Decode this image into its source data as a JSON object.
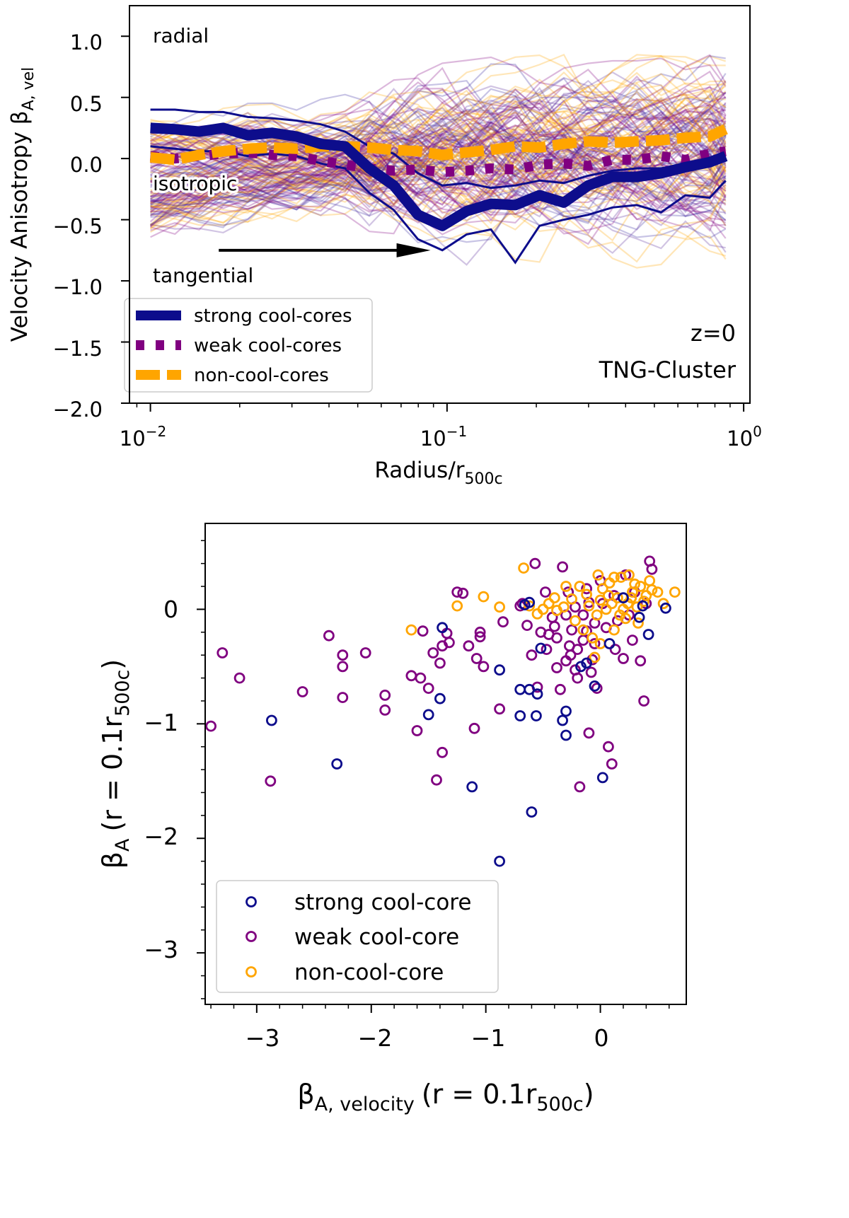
{
  "chart_data": [
    {
      "type": "line",
      "title": "",
      "xlabel": "Radius/r",
      "xlabel_sub": "500c",
      "ylabel": "Velocity Anisotropy β",
      "ylabel_sub": "A, vel",
      "xscale": "log",
      "xlim": [
        0.0085,
        1.05
      ],
      "ylim": [
        -2.0,
        1.25
      ],
      "ytick_labels": [
        "1.0",
        "0.5",
        "0.0",
        "−0.5",
        "−1.0",
        "−1.5",
        "−2.0"
      ],
      "xtick_bases": [
        "10",
        "10",
        "10"
      ],
      "xtick_exponents": [
        "−2",
        "−1",
        "0"
      ],
      "annotations": {
        "radial": "radial",
        "isotropic": "isotropic",
        "tangential": "tangential",
        "redshift": "z=0",
        "simulation": "TNG-Cluster"
      },
      "arrow": {
        "from": [
          0.017,
          -0.75
        ],
        "to": [
          0.088,
          -0.75
        ]
      },
      "legend_position": "lower-left",
      "x": [
        0.01,
        0.0121,
        0.0146,
        0.0176,
        0.0213,
        0.0257,
        0.0311,
        0.0375,
        0.0453,
        0.0547,
        0.0661,
        0.0798,
        0.0964,
        0.1164,
        0.1406,
        0.1698,
        0.2051,
        0.2477,
        0.2991,
        0.3612,
        0.4363,
        0.5269,
        0.6363,
        0.7685,
        0.8696
      ],
      "series": [
        {
          "name": "strong cool-cores",
          "color": "#0d0d8c",
          "style": "solid",
          "values": [
            0.25,
            0.24,
            0.22,
            0.25,
            0.19,
            0.21,
            0.18,
            0.12,
            0.1,
            -0.08,
            -0.22,
            -0.46,
            -0.55,
            -0.43,
            -0.37,
            -0.38,
            -0.3,
            -0.36,
            -0.22,
            -0.15,
            -0.15,
            -0.12,
            -0.07,
            -0.03,
            0.02
          ],
          "upper": [
            0.4,
            0.4,
            0.38,
            0.38,
            0.34,
            0.33,
            0.31,
            0.28,
            0.22,
            0.1,
            0.04,
            -0.12,
            -0.22,
            -0.2,
            -0.24,
            -0.22,
            -0.18,
            -0.2,
            -0.14,
            -0.1,
            -0.08,
            -0.08,
            -0.04,
            -0.02,
            0.0
          ],
          "lower": [
            0.1,
            0.08,
            0.06,
            0.06,
            0.02,
            0.04,
            0.02,
            -0.04,
            -0.08,
            -0.28,
            -0.42,
            -0.66,
            -0.75,
            -0.62,
            -0.58,
            -0.85,
            -0.55,
            -0.5,
            -0.46,
            -0.4,
            -0.38,
            -0.44,
            -0.3,
            -0.32,
            -0.18
          ]
        },
        {
          "name": "weak cool-cores",
          "color": "#800080",
          "style": "dotted",
          "values": [
            0.02,
            0.0,
            0.02,
            0.04,
            0.05,
            0.03,
            0.02,
            -0.02,
            -0.05,
            -0.08,
            -0.1,
            -0.09,
            -0.11,
            -0.1,
            -0.08,
            -0.09,
            -0.05,
            -0.04,
            -0.06,
            -0.01,
            -0.01,
            0.02,
            -0.01,
            0.04,
            0.06
          ]
        },
        {
          "name": "non-cool-cores",
          "color": "#ffa500",
          "style": "dashed",
          "values": [
            0.01,
            -0.01,
            0.03,
            0.06,
            0.08,
            0.09,
            0.08,
            0.1,
            0.1,
            0.09,
            0.07,
            0.06,
            0.03,
            0.05,
            0.07,
            0.1,
            0.09,
            0.12,
            0.14,
            0.13,
            0.14,
            0.15,
            0.17,
            0.18,
            0.24
          ]
        }
      ]
    },
    {
      "type": "scatter",
      "title": "",
      "xlabel": "β",
      "xlabel_sub": "A, velocity",
      "xlabel_rest": "(r = 0.1r",
      "xlabel_rest_sub": "500c",
      "xlabel_close": ")",
      "ylabel": "β",
      "ylabel_sub": "A",
      "ylabel_rest": "(r = 0.1r",
      "ylabel_rest_sub": "500c",
      "ylabel_close": ")",
      "xlim": [
        -3.45,
        0.75
      ],
      "ylim": [
        -3.45,
        0.75
      ],
      "xtick_labels": [
        "−3",
        "−2",
        "−1",
        "0"
      ],
      "ytick_labels": [
        "0",
        "−1",
        "−2",
        "−3"
      ],
      "legend_position": "lower-left",
      "series": [
        {
          "name": "strong cool-core",
          "color": "#0d0d8c",
          "points": [
            [
              -2.87,
              -0.97
            ],
            [
              -2.3,
              -1.35
            ],
            [
              -1.5,
              -0.92
            ],
            [
              -1.4,
              -0.78
            ],
            [
              -1.38,
              -0.16
            ],
            [
              -1.12,
              -1.55
            ],
            [
              -0.88,
              -0.53
            ],
            [
              -0.88,
              -2.2
            ],
            [
              -0.7,
              -0.7
            ],
            [
              -0.7,
              -0.93
            ],
            [
              -0.66,
              0.04
            ],
            [
              -0.62,
              -0.7
            ],
            [
              -0.6,
              -1.77
            ],
            [
              -0.56,
              -0.93
            ],
            [
              -0.55,
              -0.74
            ],
            [
              -0.33,
              -0.97
            ],
            [
              -0.3,
              -0.89
            ],
            [
              -0.3,
              -1.1
            ],
            [
              -0.12,
              -0.47
            ],
            [
              -0.05,
              -0.67
            ],
            [
              0.02,
              -1.47
            ],
            [
              0.2,
              0.1
            ],
            [
              0.34,
              -0.07
            ],
            [
              0.37,
              0.03
            ],
            [
              0.42,
              -0.22
            ],
            [
              0.57,
              0.01
            ],
            [
              -0.62,
              0.06
            ],
            [
              -0.52,
              -0.34
            ],
            [
              -0.17,
              -0.5
            ],
            [
              0.08,
              -0.3
            ]
          ]
        },
        {
          "name": "weak cool-core",
          "color": "#800080",
          "points": [
            [
              -3.4,
              -1.02
            ],
            [
              -3.3,
              -0.38
            ],
            [
              -3.15,
              -0.6
            ],
            [
              -2.88,
              -1.5
            ],
            [
              -2.6,
              -0.72
            ],
            [
              -2.37,
              -0.23
            ],
            [
              -2.25,
              -0.4
            ],
            [
              -2.25,
              -0.5
            ],
            [
              -2.25,
              -0.77
            ],
            [
              -2.05,
              -0.38
            ],
            [
              -1.88,
              -0.75
            ],
            [
              -1.88,
              -0.88
            ],
            [
              -1.65,
              -0.58
            ],
            [
              -1.6,
              -1.06
            ],
            [
              -1.57,
              -0.6
            ],
            [
              -1.55,
              -0.19
            ],
            [
              -1.5,
              -0.69
            ],
            [
              -1.46,
              -0.38
            ],
            [
              -1.43,
              -1.49
            ],
            [
              -1.4,
              -0.47
            ],
            [
              -1.38,
              -0.32
            ],
            [
              -1.38,
              -1.25
            ],
            [
              -1.34,
              -0.21
            ],
            [
              -1.32,
              -0.29
            ],
            [
              -1.25,
              0.15
            ],
            [
              -1.2,
              0.14
            ],
            [
              -1.15,
              -0.32
            ],
            [
              -1.1,
              -1.04
            ],
            [
              -1.08,
              -0.43
            ],
            [
              -1.05,
              -0.24
            ],
            [
              -1.05,
              -0.2
            ],
            [
              -1.02,
              -0.5
            ],
            [
              -0.88,
              -0.87
            ],
            [
              -0.85,
              -0.11
            ],
            [
              -0.7,
              0.03
            ],
            [
              -0.64,
              -0.14
            ],
            [
              -0.6,
              -0.4
            ],
            [
              -0.55,
              -0.68
            ],
            [
              -0.52,
              -0.2
            ],
            [
              -0.48,
              0.15
            ],
            [
              -0.45,
              -0.22
            ],
            [
              -0.4,
              -0.15
            ],
            [
              -0.38,
              -0.51
            ],
            [
              -0.35,
              -0.7
            ],
            [
              -0.3,
              -0.45
            ],
            [
              -0.27,
              -0.32
            ],
            [
              -0.25,
              -0.18
            ],
            [
              -0.22,
              -0.53
            ],
            [
              -0.2,
              -0.6
            ],
            [
              -0.18,
              -1.55
            ],
            [
              -0.15,
              -0.27
            ],
            [
              -0.12,
              -0.19
            ],
            [
              -0.1,
              -1.08
            ],
            [
              -0.07,
              -0.44
            ],
            [
              -0.05,
              -0.3
            ],
            [
              -0.03,
              -0.69
            ],
            [
              0.05,
              -0.16
            ],
            [
              0.07,
              -1.2
            ],
            [
              0.1,
              -1.35
            ],
            [
              0.13,
              -0.35
            ],
            [
              0.2,
              -0.43
            ],
            [
              0.28,
              -0.27
            ],
            [
              0.35,
              -0.45
            ],
            [
              0.38,
              -0.8
            ],
            [
              0.43,
              0.42
            ],
            [
              0.45,
              0.35
            ],
            [
              -0.68,
              0.05
            ],
            [
              -0.57,
              0.4
            ],
            [
              -0.33,
              0.37
            ],
            [
              -0.28,
              0.15
            ],
            [
              -0.42,
              -0.07
            ],
            [
              -0.22,
              0.02
            ],
            [
              -0.15,
              -0.05
            ],
            [
              -0.1,
              0.06
            ],
            [
              -0.05,
              -0.12
            ],
            [
              0.0,
              0.25
            ],
            [
              0.12,
              0.12
            ],
            [
              0.25,
              -0.05
            ],
            [
              0.3,
              0.15
            ],
            [
              0.4,
              0.05
            ],
            [
              -0.2,
              -0.35
            ],
            [
              -0.38,
              -0.25
            ],
            [
              -0.08,
              -0.55
            ],
            [
              0.15,
              -0.1
            ],
            [
              -0.3,
              -0.05
            ],
            [
              -0.47,
              -0.35
            ],
            [
              0.02,
              0.05
            ],
            [
              0.22,
              0.3
            ],
            [
              -0.12,
              0.18
            ],
            [
              -0.26,
              -0.4
            ]
          ]
        },
        {
          "name": "non-cool-core",
          "color": "#ffa500",
          "points": [
            [
              -1.65,
              -0.18
            ],
            [
              -1.25,
              0.03
            ],
            [
              -1.02,
              0.11
            ],
            [
              -0.88,
              0.02
            ],
            [
              -0.67,
              0.36
            ],
            [
              -0.62,
              0.03
            ],
            [
              -0.55,
              -0.04
            ],
            [
              -0.5,
              0.0
            ],
            [
              -0.45,
              0.05
            ],
            [
              -0.38,
              -0.01
            ],
            [
              -0.32,
              0.02
            ],
            [
              -0.25,
              0.09
            ],
            [
              -0.18,
              0.2
            ],
            [
              -0.15,
              -0.18
            ],
            [
              -0.12,
              0.13
            ],
            [
              -0.1,
              0.03
            ],
            [
              -0.07,
              -0.25
            ],
            [
              -0.05,
              -0.42
            ],
            [
              -0.03,
              -0.05
            ],
            [
              0.0,
              0.08
            ],
            [
              0.02,
              0.18
            ],
            [
              0.05,
              0.0
            ],
            [
              0.08,
              0.23
            ],
            [
              0.1,
              0.05
            ],
            [
              0.12,
              -0.18
            ],
            [
              0.15,
              0.1
            ],
            [
              0.18,
              0.28
            ],
            [
              0.2,
              0.0
            ],
            [
              0.22,
              -0.08
            ],
            [
              0.25,
              0.3
            ],
            [
              0.28,
              0.15
            ],
            [
              0.3,
              0.22
            ],
            [
              0.32,
              0.02
            ],
            [
              0.35,
              0.2
            ],
            [
              0.38,
              0.07
            ],
            [
              0.4,
              0.12
            ],
            [
              0.43,
              0.25
            ],
            [
              0.45,
              0.17
            ],
            [
              0.5,
              0.15
            ],
            [
              0.55,
              0.05
            ],
            [
              0.65,
              0.15
            ],
            [
              -0.22,
              -0.1
            ],
            [
              -0.02,
              0.3
            ],
            [
              0.07,
              0.12
            ],
            [
              0.17,
              -0.05
            ],
            [
              0.27,
              0.1
            ],
            [
              -0.4,
              0.1
            ],
            [
              0.12,
              0.28
            ],
            [
              0.33,
              -0.12
            ],
            [
              -0.3,
              0.2
            ],
            [
              0.0,
              -0.3
            ],
            [
              0.24,
              0.05
            ]
          ]
        }
      ]
    }
  ],
  "panel1_legend": [
    "strong cool-cores",
    "weak cool-cores",
    "non-cool-cores"
  ],
  "panel2_legend": [
    "strong cool-core",
    "weak cool-core",
    "non-cool-core"
  ]
}
